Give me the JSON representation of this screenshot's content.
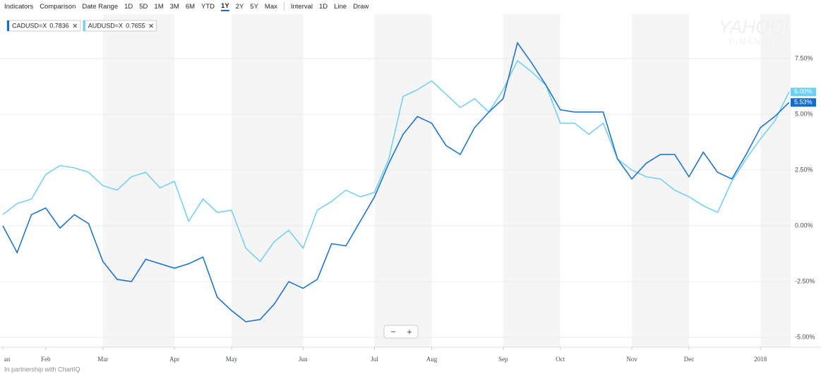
{
  "toolbar": {
    "tools": [
      "Indicators",
      "Comparison",
      "Date Range"
    ],
    "ranges": [
      "1D",
      "5D",
      "1M",
      "3M",
      "6M",
      "YTD",
      "1Y",
      "2Y",
      "5Y",
      "Max"
    ],
    "interval": "Interval",
    "interval_value": "1D",
    "chart_kind": "Line",
    "draw": "Draw"
  },
  "watermark": {
    "brand": "YAHOO!",
    "sub": "FINANCE"
  },
  "zoom": {
    "out": "−",
    "in": "+"
  },
  "footer": "In partnership with ChartIQ",
  "chart_data": {
    "type": "line",
    "categories": [
      "an",
      null,
      null,
      "Feb",
      null,
      null,
      null,
      "Mar",
      null,
      null,
      null,
      null,
      "Apr",
      null,
      null,
      null,
      "May",
      null,
      null,
      null,
      null,
      "Jun",
      null,
      null,
      null,
      null,
      "Jul",
      null,
      null,
      null,
      "Aug",
      null,
      null,
      null,
      null,
      "Sep",
      null,
      null,
      null,
      "Oct",
      null,
      null,
      null,
      null,
      "Nov",
      null,
      null,
      null,
      "Dec",
      null,
      null,
      null,
      null,
      "2018",
      null,
      null
    ],
    "series": [
      {
        "name": "CADUSD=X",
        "price": 0.7836,
        "color": "#0f6fd1",
        "values": [
          0,
          -1.2,
          0.5,
          0.8,
          -0.1,
          0.5,
          0.1,
          -1.6,
          -2.4,
          -2.5,
          -1.5,
          -1.7,
          -1.9,
          -1.7,
          -1.4,
          -3.2,
          -3.8,
          -4.3,
          -4.2,
          -3.5,
          -2.5,
          -2.8,
          -2.4,
          -0.8,
          -0.9,
          0.2,
          1.3,
          2.8,
          4.1,
          4.9,
          4.6,
          3.6,
          3.2,
          4.4,
          5.1,
          5.7,
          8.2,
          7.3,
          6.3,
          5.2,
          5.1,
          5.1,
          5.1,
          3.0,
          2.1,
          2.8,
          3.2,
          3.2,
          2.2,
          3.3,
          2.4,
          2.1,
          3.2,
          4.4,
          4.9,
          5.53
        ],
        "value_labels": [
          null,
          null,
          null,
          null,
          null,
          null,
          null,
          null,
          null,
          null,
          null,
          null,
          null,
          null,
          null,
          null,
          null,
          null,
          null,
          null,
          null,
          null,
          null,
          null,
          null,
          null,
          null,
          null,
          null,
          null,
          null,
          null,
          null,
          null,
          null,
          null,
          null,
          null,
          null,
          null,
          null,
          null,
          null,
          null,
          null,
          null,
          null,
          null,
          null,
          null,
          null,
          null,
          null,
          null,
          null,
          "5.53%"
        ]
      },
      {
        "name": "AUDUSD=X",
        "price": 0.7655,
        "color": "#6ccff6",
        "values": [
          0.5,
          1.0,
          1.2,
          2.3,
          2.7,
          2.6,
          2.4,
          1.8,
          1.6,
          2.2,
          2.4,
          1.7,
          2.0,
          0.2,
          1.2,
          0.6,
          0.7,
          -1.0,
          -1.6,
          -0.7,
          -0.2,
          -1.0,
          0.7,
          1.1,
          1.6,
          1.3,
          1.5,
          3.0,
          5.8,
          6.1,
          6.5,
          5.9,
          5.3,
          5.7,
          5.1,
          6.1,
          7.4,
          6.9,
          6.3,
          4.6,
          4.6,
          4.1,
          4.6,
          3.0,
          2.5,
          2.2,
          2.1,
          1.6,
          1.3,
          0.9,
          0.6,
          2.0,
          3.0,
          3.9,
          4.7,
          6.0
        ],
        "value_labels": [
          null,
          null,
          null,
          null,
          null,
          null,
          null,
          null,
          null,
          null,
          null,
          null,
          null,
          null,
          null,
          null,
          null,
          null,
          null,
          null,
          null,
          null,
          null,
          null,
          null,
          null,
          null,
          null,
          null,
          null,
          null,
          null,
          null,
          null,
          null,
          null,
          null,
          null,
          null,
          null,
          null,
          null,
          null,
          null,
          null,
          null,
          null,
          null,
          null,
          null,
          null,
          null,
          null,
          null,
          null,
          "6.00%"
        ]
      }
    ],
    "ylim": [
      -5.44,
      9.49
    ],
    "yticks": [
      {
        "value": 7.5,
        "label": "7.50%"
      },
      {
        "value": 5,
        "label": "5.00%"
      },
      {
        "value": 2.5,
        "label": "2.50%"
      },
      {
        "value": 0,
        "label": "0.00%"
      },
      {
        "value": -2.5,
        "label": "-2.50%"
      },
      {
        "value": -5,
        "label": "-5.00%"
      }
    ],
    "grid": true
  }
}
